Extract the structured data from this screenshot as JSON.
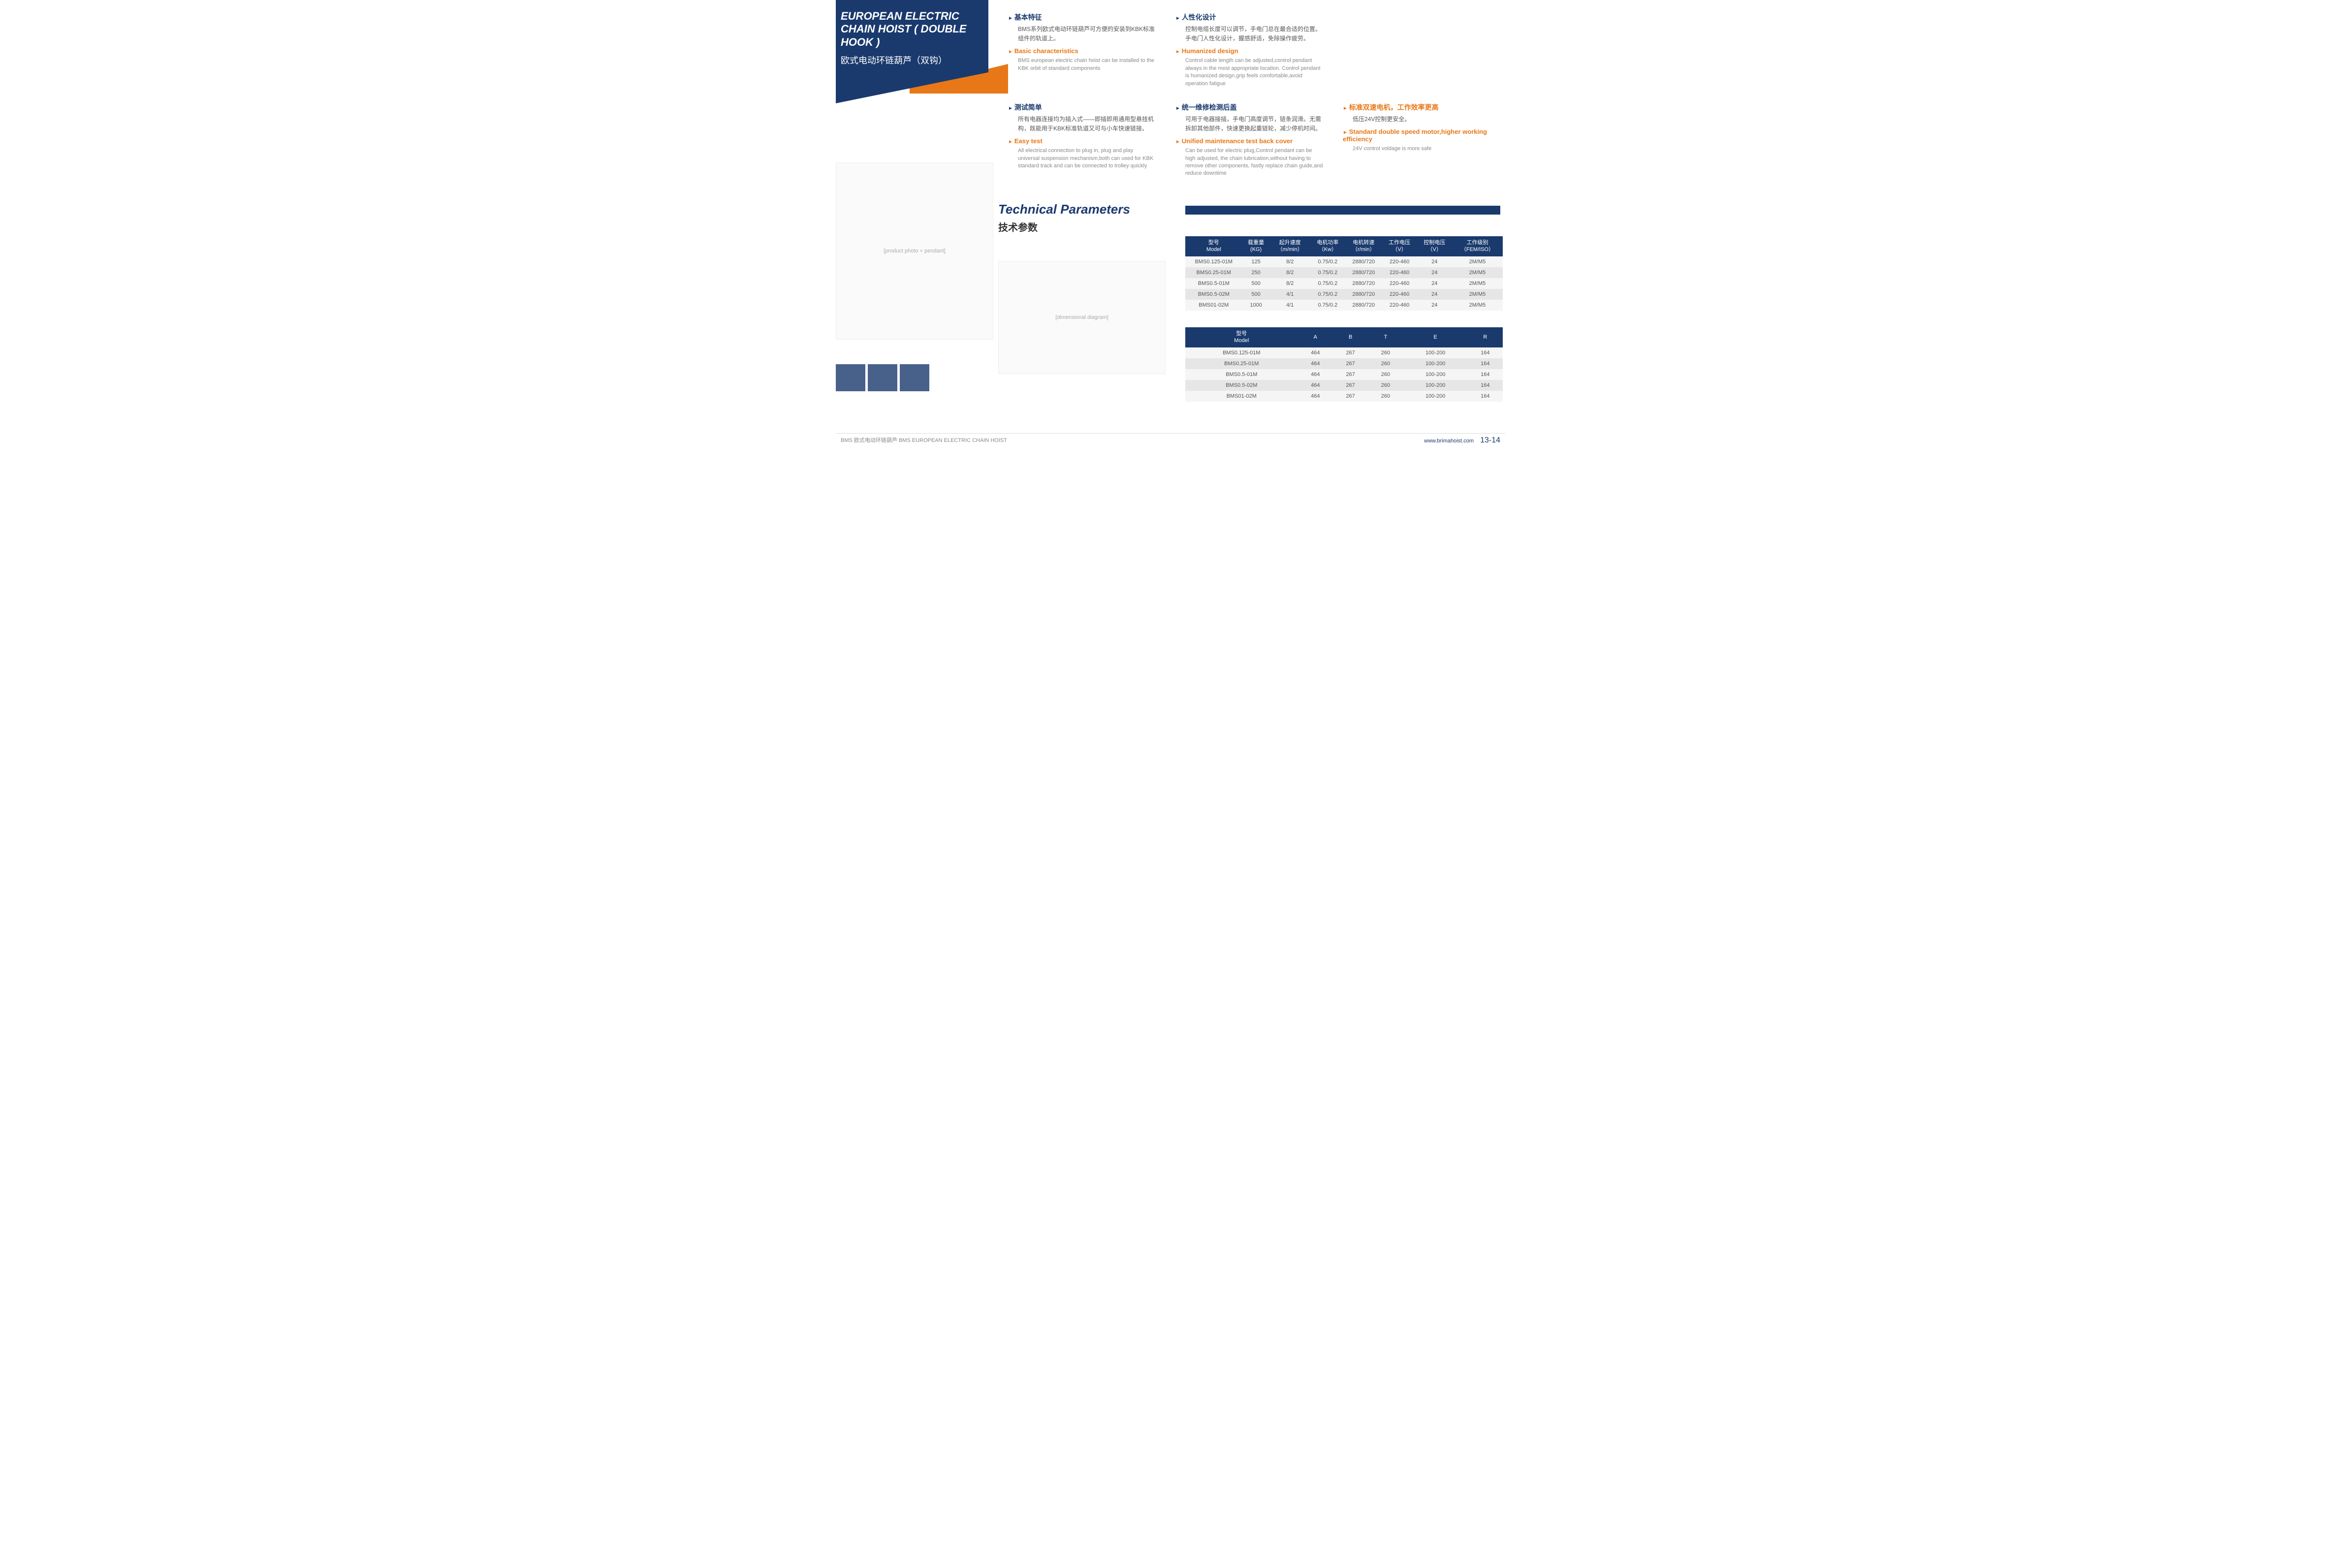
{
  "header": {
    "title_en": "EUROPEAN ELECTRIC CHAIN HOIST ( DOUBLE HOOK )",
    "title_cn": "欧式电动环链葫芦（双钩）"
  },
  "features": [
    {
      "title_cn": "基本特征",
      "text_cn": "BMS系列欧式电动环链葫芦可方便的安装到KBK标准组件的轨道上。",
      "title_en": "Basic characteristics",
      "text_en": "BMS european electric chain hoist can be installed to the KBK orbit of standard components"
    },
    {
      "title_cn": "人性化设计",
      "text_cn": "控制电缆长度可以调节，手电门总在最合适的位置。手电门人性化设计，握感舒适，免除操作疲劳。",
      "title_en": "Humanized design",
      "text_en": "Control cable length can be adjusted,control pendant always in the most appropriate location. Control pendant is humanized design,grip feels comfortable,avoid operation fatigue"
    },
    {
      "title_cn": "测试简单",
      "text_cn": "所有电器连接均为插入式——即插即用通用型悬挂机构，既能用于KBK标准轨道又可与小车快速链接。",
      "title_en": "Easy test",
      "text_en": "All electrical connection to plug in, plug and play universal suspension mechanism,both can used for KBK standard track and can be connected to trolley quickly"
    },
    {
      "title_cn": "统一维修检测后盖",
      "text_cn": "可用于电器接插，手电门高度调节，链条润滑。无需拆卸其他部件，快速更换起重链轮，减少停机时间。",
      "title_en": "Unified maintenance test back cover",
      "text_en": "Can be used for electric plug,Control pendant can be high adjusted, the chain lubrication,without having to remove other components, fastly replace chain guide,and reduce downtime"
    },
    {
      "title_cn": "标准双速电机，工作效率更高",
      "text_cn": "低压24V控制更安全。",
      "title_en": "Standard double speed motor,higher working efficiency",
      "text_en": "24V control voldage is more safe"
    }
  ],
  "tech": {
    "en": "Technical Parameters",
    "cn": "技术参数"
  },
  "table1": {
    "headers": [
      {
        "cn": "型号",
        "en": "Model"
      },
      {
        "cn": "载重量",
        "en": "(KG)"
      },
      {
        "cn": "起升速度",
        "en": "（m/min）"
      },
      {
        "cn": "电机功率",
        "en": "（Kw）"
      },
      {
        "cn": "电机转速",
        "en": "（r/min）"
      },
      {
        "cn": "工作电压",
        "en": "（V）"
      },
      {
        "cn": "控制电压",
        "en": "（V）"
      },
      {
        "cn": "工作级别",
        "en": "（FEM/ISO）"
      }
    ],
    "rows": [
      [
        "BMS0.125-01M",
        "125",
        "8/2",
        "0.75/0.2",
        "2880/720",
        "220-460",
        "24",
        "2M/M5"
      ],
      [
        "BMS0.25-01M",
        "250",
        "8/2",
        "0.75/0.2",
        "2880/720",
        "220-460",
        "24",
        "2M/M5"
      ],
      [
        "BMS0.5-01M",
        "500",
        "8/2",
        "0.75/0.2",
        "2880/720",
        "220-460",
        "24",
        "2M/M5"
      ],
      [
        "BMS0.5-02M",
        "500",
        "4/1",
        "0.75/0.2",
        "2880/720",
        "220-460",
        "24",
        "2M/M5"
      ],
      [
        "BMS01-02M",
        "1000",
        "4/1",
        "0.75/0.2",
        "2880/720",
        "220-460",
        "24",
        "2M/M5"
      ]
    ]
  },
  "table2": {
    "headers": [
      {
        "cn": "型号",
        "en": "Model"
      },
      {
        "cn": "",
        "en": "A"
      },
      {
        "cn": "",
        "en": "B"
      },
      {
        "cn": "",
        "en": "T"
      },
      {
        "cn": "",
        "en": "E"
      },
      {
        "cn": "",
        "en": "R"
      }
    ],
    "rows": [
      [
        "BMS0.125-01M",
        "464",
        "267",
        "260",
        "100-200",
        "164"
      ],
      [
        "BMS0.25-01M",
        "464",
        "267",
        "260",
        "100-200",
        "164"
      ],
      [
        "BMS0.5-01M",
        "464",
        "267",
        "260",
        "100-200",
        "164"
      ],
      [
        "BMS0.5-02M",
        "464",
        "267",
        "260",
        "100-200",
        "164"
      ],
      [
        "BMS01-02M",
        "464",
        "267",
        "260",
        "100-200",
        "164"
      ]
    ]
  },
  "footer": {
    "left": "BMS 欧式电动环链葫芦   BMS EUROPEAN ELECTRIC CHAIN HOIST",
    "url": "www.brimahoist.com",
    "page": "13-14"
  },
  "placeholders": {
    "product": "[product photo + pendant]",
    "diagram": "[dimensional diagram]"
  }
}
